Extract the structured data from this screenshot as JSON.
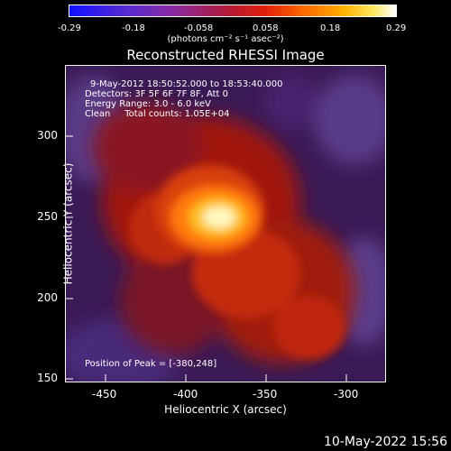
{
  "colorbar": {
    "ticks": [
      "-0.29",
      "-0.18",
      "-0.058",
      "0.058",
      "0.18",
      "0.29"
    ],
    "units": "(photons cm⁻² s⁻¹ asec⁻²)"
  },
  "title": "Reconstructed RHESSI Image",
  "info": {
    "time": "9-May-2012 18:50:52.000 to 18:53:40.000",
    "detectors": "Detectors: 3F 5F 6F 7F 8F, Att 0",
    "energy": "Energy Range: 3.0 - 6.0 keV",
    "clean": "Clean     Total counts: 1.05E+04",
    "peak": "Position of Peak = [-380,248]"
  },
  "axes": {
    "xlabel": "Heliocentric X (arcsec)",
    "ylabel": "Heliocentric Y (arcsec)",
    "xticks": [
      "-450",
      "-400",
      "-350",
      "-300"
    ],
    "yticks": [
      "300",
      "250",
      "200",
      "150"
    ]
  },
  "footer": "10-May-2022 15:56"
}
